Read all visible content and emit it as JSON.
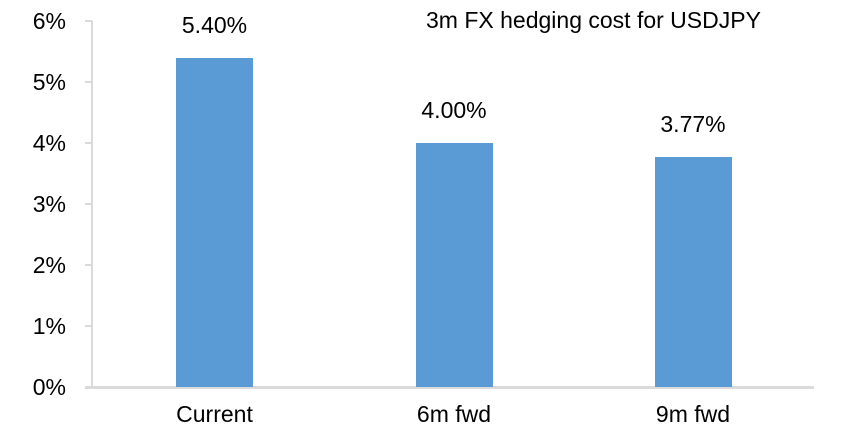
{
  "chart_data": {
    "type": "bar",
    "title": "3m FX hedging cost for USDJPY",
    "categories": [
      "Current",
      "6m fwd",
      "9m fwd"
    ],
    "values": [
      5.4,
      4.0,
      3.77
    ],
    "value_labels": [
      "5.40%",
      "4.00%",
      "3.77%"
    ],
    "xlabel": "",
    "ylabel": "",
    "ylim": [
      0,
      6
    ],
    "ytick_values": [
      0,
      1,
      2,
      3,
      4,
      5,
      6
    ],
    "ytick_labels": [
      "0%",
      "1%",
      "2%",
      "3%",
      "4%",
      "5%",
      "6%"
    ],
    "grid": false,
    "legend": "none",
    "bar_color": "#5B9BD5",
    "axis_color": "#DADADA",
    "text_color": "#000000",
    "background_color": "#FFFFFF"
  }
}
